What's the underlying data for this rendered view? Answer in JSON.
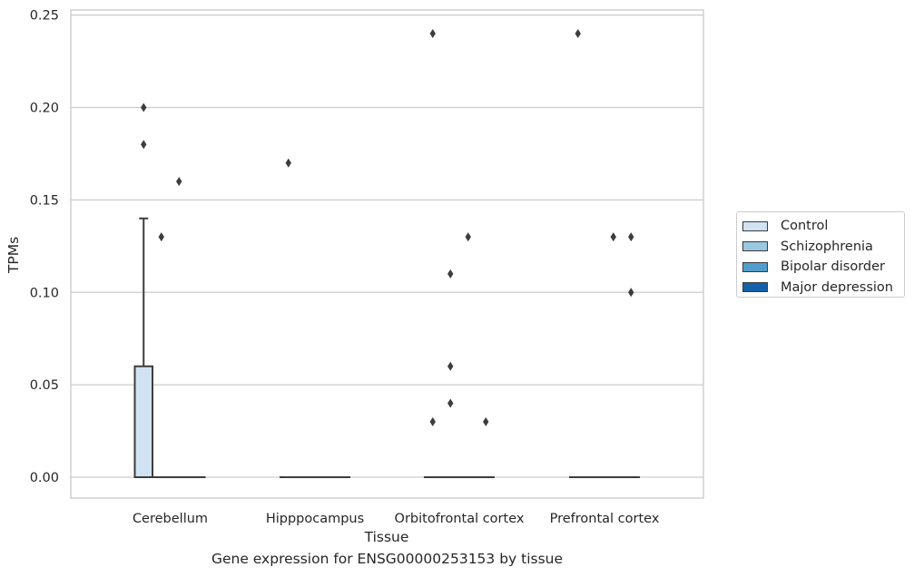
{
  "caption": "Gene expression for ENSG00000253153 by tissue",
  "chart_data": {
    "type": "box",
    "title": "",
    "xlabel": "Tissue",
    "ylabel": "TPMs",
    "ylim": [
      -0.012,
      0.252
    ],
    "yticks": [
      "0.00",
      "0.05",
      "0.10",
      "0.15",
      "0.20",
      "0.25"
    ],
    "ytick_values": [
      0,
      0.05,
      0.1,
      0.15,
      0.2,
      0.25
    ],
    "grid": "horizontal",
    "legend_position": "right",
    "categories": [
      "Cerebellum",
      "Hipppocampus",
      "Orbitofrontal cortex",
      "Prefrontal cortex"
    ],
    "series": [
      {
        "name": "Control",
        "color": "#d1e2f2",
        "boxes": [
          {
            "q1": 0,
            "median": 0,
            "q3": 0.06,
            "whisker_low": 0,
            "whisker_high": 0.14,
            "outliers": [
              0.18,
              0.2
            ]
          },
          {
            "q1": 0,
            "median": 0,
            "q3": 0,
            "whisker_low": 0,
            "whisker_high": 0,
            "outliers": [
              0.17
            ]
          },
          {
            "q1": 0,
            "median": 0,
            "q3": 0,
            "whisker_low": 0,
            "whisker_high": 0,
            "outliers": [
              0.03,
              0.24
            ]
          },
          {
            "q1": 0,
            "median": 0,
            "q3": 0,
            "whisker_low": 0,
            "whisker_high": 0,
            "outliers": [
              0.24
            ]
          }
        ]
      },
      {
        "name": "Schizophrenia",
        "color": "#9ac8e0",
        "boxes": [
          {
            "q1": 0,
            "median": 0,
            "q3": 0,
            "whisker_low": 0,
            "whisker_high": 0,
            "outliers": [
              0.13
            ]
          },
          {
            "q1": 0,
            "median": 0,
            "q3": 0,
            "whisker_low": 0,
            "whisker_high": 0,
            "outliers": []
          },
          {
            "q1": 0,
            "median": 0,
            "q3": 0,
            "whisker_low": 0,
            "whisker_high": 0,
            "outliers": [
              0.04,
              0.06,
              0.11
            ]
          },
          {
            "q1": 0,
            "median": 0,
            "q3": 0,
            "whisker_low": 0,
            "whisker_high": 0,
            "outliers": []
          }
        ]
      },
      {
        "name": "Bipolar disorder",
        "color": "#529dcb",
        "boxes": [
          {
            "q1": 0,
            "median": 0,
            "q3": 0,
            "whisker_low": 0,
            "whisker_high": 0,
            "outliers": [
              0.16
            ]
          },
          {
            "q1": 0,
            "median": 0,
            "q3": 0,
            "whisker_low": 0,
            "whisker_high": 0,
            "outliers": []
          },
          {
            "q1": 0,
            "median": 0,
            "q3": 0,
            "whisker_low": 0,
            "whisker_high": 0,
            "outliers": [
              0.13
            ]
          },
          {
            "q1": 0,
            "median": 0,
            "q3": 0,
            "whisker_low": 0,
            "whisker_high": 0,
            "outliers": [
              0.13
            ]
          }
        ]
      },
      {
        "name": "Major depression",
        "color": "#1561a8",
        "boxes": [
          {
            "q1": 0,
            "median": 0,
            "q3": 0,
            "whisker_low": 0,
            "whisker_high": 0,
            "outliers": []
          },
          {
            "q1": 0,
            "median": 0,
            "q3": 0,
            "whisker_low": 0,
            "whisker_high": 0,
            "outliers": []
          },
          {
            "q1": 0,
            "median": 0,
            "q3": 0,
            "whisker_low": 0,
            "whisker_high": 0,
            "outliers": [
              0.03
            ]
          },
          {
            "q1": 0,
            "median": 0,
            "q3": 0,
            "whisker_low": 0,
            "whisker_high": 0,
            "outliers": [
              0.1,
              0.13
            ]
          }
        ]
      }
    ]
  }
}
